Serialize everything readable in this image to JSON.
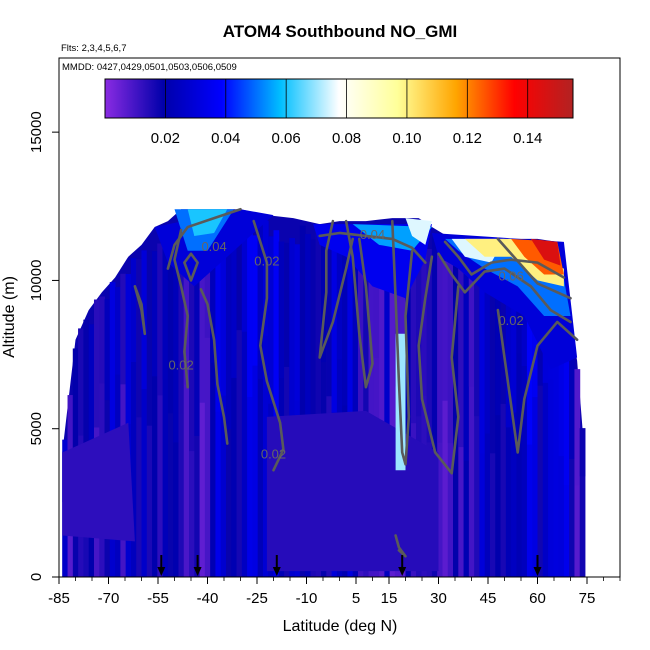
{
  "chart_data": {
    "type": "heatmap",
    "title": "ATOM4 Southbound NO_GMI",
    "flights_label": "Flts: 2,3,4,5,6,7",
    "dates_label": "MMDD: 0427,0429,0501,0503,0506,0509",
    "xlabel": "Latitude (deg N)",
    "ylabel": "Altitude (m)",
    "xlim": [
      -85,
      85
    ],
    "ylim": [
      0,
      17500
    ],
    "x_ticks": [
      -85,
      -70,
      -55,
      -40,
      -25,
      -10,
      5,
      15,
      30,
      45,
      60,
      75
    ],
    "y_ticks": [
      0,
      5000,
      10000,
      15000
    ],
    "colorbar": {
      "min": 0.0,
      "max": 0.155,
      "ticks": [
        0.02,
        0.04,
        0.06,
        0.08,
        0.1,
        0.12,
        0.14
      ],
      "tick_labels": [
        "0.02",
        "0.04",
        "0.06",
        "0.08",
        "0.10",
        "0.12",
        "0.14"
      ],
      "colors": [
        "#8a2be2",
        "#0000aa",
        "#0000ff",
        "#00bfff",
        "#ffffff",
        "#ffff99",
        "#ffa500",
        "#ff0000",
        "#b22222"
      ]
    },
    "profile_markers_lat": [
      -54,
      -43,
      -19,
      19,
      60
    ],
    "contour_levels": [
      0.02,
      0.04,
      0.06
    ],
    "contour_labels": [
      {
        "text": "0.04",
        "lat": -38,
        "alt": 11000
      },
      {
        "text": "0.02",
        "lat": -22,
        "alt": 10500
      },
      {
        "text": "0.04",
        "lat": 10,
        "alt": 11400
      },
      {
        "text": "0.06",
        "lat": 52,
        "alt": 10000
      },
      {
        "text": "0.02",
        "lat": 52,
        "alt": 8500
      },
      {
        "text": "0.02",
        "lat": -48,
        "alt": 7000
      },
      {
        "text": "0.02",
        "lat": -20,
        "alt": 4000
      }
    ],
    "ceiling_by_lat": [
      [
        -84,
        4200
      ],
      [
        -80,
        8000
      ],
      [
        -76,
        9000
      ],
      [
        -72,
        9600
      ],
      [
        -68,
        10100
      ],
      [
        -64,
        10800
      ],
      [
        -60,
        11200
      ],
      [
        -56,
        11800
      ],
      [
        -52,
        12000
      ],
      [
        -48,
        12400
      ],
      [
        -40,
        12400
      ],
      [
        -30,
        12400
      ],
      [
        -22,
        12200
      ],
      [
        -14,
        12100
      ],
      [
        -6,
        11900
      ],
      [
        0,
        12000
      ],
      [
        8,
        12000
      ],
      [
        16,
        12100
      ],
      [
        24,
        12100
      ],
      [
        28,
        11800
      ],
      [
        34,
        11400
      ],
      [
        44,
        11400
      ],
      [
        52,
        11400
      ],
      [
        60,
        11400
      ],
      [
        66,
        11300
      ],
      [
        68,
        9500
      ],
      [
        72,
        7300
      ],
      [
        74,
        4500
      ]
    ],
    "layers": [
      {
        "level": 0.03,
        "poly": [
          [
            -56,
            11800
          ],
          [
            -30,
            12400
          ],
          [
            -20,
            12200
          ],
          [
            -32,
            11000
          ],
          [
            -44,
            9800
          ],
          [
            -52,
            10600
          ]
        ]
      },
      {
        "level": 0.05,
        "poly": [
          [
            -50,
            12400
          ],
          [
            -32,
            12400
          ],
          [
            -40,
            11000
          ],
          [
            -46,
            11000
          ]
        ]
      },
      {
        "level": 0.06,
        "poly": [
          [
            -46,
            12400
          ],
          [
            -34,
            12400
          ],
          [
            -38,
            11600
          ],
          [
            -44,
            11500
          ]
        ]
      },
      {
        "level": 0.035,
        "poly": [
          [
            -8,
            11900
          ],
          [
            28,
            11900
          ],
          [
            26,
            10700
          ],
          [
            20,
            9400
          ],
          [
            10,
            9800
          ],
          [
            2,
            10800
          ],
          [
            -6,
            11200
          ]
        ]
      },
      {
        "level": 0.055,
        "poly": [
          [
            4,
            11900
          ],
          [
            28,
            11800
          ],
          [
            22,
            11000
          ],
          [
            12,
            11200
          ]
        ]
      },
      {
        "level": 0.075,
        "poly": [
          [
            20,
            12100
          ],
          [
            28,
            12000
          ],
          [
            26,
            11200
          ],
          [
            22,
            11500
          ]
        ]
      },
      {
        "level": 0.03,
        "poly": [
          [
            28,
            11600
          ],
          [
            68,
            11300
          ],
          [
            72,
            7400
          ],
          [
            64,
            7000
          ],
          [
            56,
            8800
          ],
          [
            44,
            9600
          ],
          [
            36,
            10400
          ],
          [
            30,
            10800
          ]
        ]
      },
      {
        "level": 0.05,
        "poly": [
          [
            32,
            11400
          ],
          [
            66,
            11300
          ],
          [
            70,
            8800
          ],
          [
            62,
            8800
          ],
          [
            54,
            9800
          ],
          [
            44,
            10400
          ],
          [
            36,
            11000
          ]
        ]
      },
      {
        "level": 0.075,
        "poly": [
          [
            34,
            11400
          ],
          [
            50,
            11400
          ],
          [
            46,
            10600
          ],
          [
            38,
            10800
          ]
        ]
      },
      {
        "level": 0.1,
        "poly": [
          [
            38,
            11400
          ],
          [
            52,
            11400
          ],
          [
            60,
            10800
          ],
          [
            68,
            10400
          ],
          [
            68,
            9800
          ],
          [
            60,
            10000
          ],
          [
            52,
            10800
          ],
          [
            44,
            10800
          ]
        ]
      },
      {
        "level": 0.125,
        "poly": [
          [
            52,
            11400
          ],
          [
            66,
            11300
          ],
          [
            68,
            10200
          ],
          [
            62,
            10200
          ],
          [
            56,
            10800
          ]
        ]
      },
      {
        "level": 0.145,
        "poly": [
          [
            58,
            11400
          ],
          [
            66,
            11300
          ],
          [
            67,
            10500
          ],
          [
            62,
            10700
          ]
        ]
      },
      {
        "level": 0.013,
        "poly": [
          [
            -84,
            4200
          ],
          [
            -64,
            5200
          ],
          [
            -62,
            1200
          ],
          [
            -84,
            1400
          ]
        ]
      },
      {
        "level": 0.014,
        "poly": [
          [
            -22,
            5400
          ],
          [
            8,
            5600
          ],
          [
            30,
            4200
          ],
          [
            30,
            200
          ],
          [
            -22,
            200
          ]
        ]
      },
      {
        "level": 0.07,
        "poly": [
          [
            17,
            8200
          ],
          [
            20,
            8200
          ],
          [
            20,
            3600
          ],
          [
            17,
            3600
          ]
        ]
      }
    ],
    "contours": [
      {
        "level": 0.02,
        "path": [
          [
            -62,
            9800
          ],
          [
            -60,
            9000
          ],
          [
            -59,
            8200
          ],
          [
            -60,
            9200
          ],
          [
            -62,
            9800
          ]
        ]
      },
      {
        "level": 0.02,
        "path": [
          [
            -48,
            11700
          ],
          [
            -50,
            10700
          ],
          [
            -48,
            9800
          ],
          [
            -46,
            8800
          ],
          [
            -47,
            7600
          ],
          [
            -46,
            6400
          ]
        ]
      },
      {
        "level": 0.02,
        "path": [
          [
            -42,
            9700
          ],
          [
            -40,
            9200
          ],
          [
            -38,
            8000
          ],
          [
            -37,
            6500
          ],
          [
            -35,
            5400
          ],
          [
            -34,
            4500
          ]
        ]
      },
      {
        "level": 0.02,
        "path": [
          [
            -26,
            12000
          ],
          [
            -22,
            10600
          ],
          [
            -22,
            9400
          ],
          [
            -24,
            7800
          ],
          [
            -22,
            6600
          ],
          [
            -18,
            5200
          ],
          [
            -17,
            4300
          ],
          [
            -20,
            3600
          ]
        ]
      },
      {
        "level": 0.02,
        "path": [
          [
            -2,
            12000
          ],
          [
            -4,
            11000
          ],
          [
            -4,
            9600
          ],
          [
            -6,
            7400
          ],
          [
            -2,
            8600
          ],
          [
            2,
            10400
          ],
          [
            4,
            11400
          ]
        ]
      },
      {
        "level": 0.02,
        "path": [
          [
            2,
            12000
          ],
          [
            4,
            10800
          ],
          [
            6,
            8200
          ],
          [
            8,
            6400
          ],
          [
            10,
            7200
          ],
          [
            8,
            9800
          ],
          [
            6,
            11400
          ]
        ]
      },
      {
        "level": 0.02,
        "path": [
          [
            16,
            12000
          ],
          [
            17,
            9400
          ],
          [
            18,
            6600
          ],
          [
            19,
            4200
          ],
          [
            20,
            3800
          ],
          [
            21,
            5400
          ],
          [
            20,
            8800
          ],
          [
            22,
            11000
          ]
        ]
      },
      {
        "level": 0.02,
        "path": [
          [
            28,
            10800
          ],
          [
            26,
            9400
          ],
          [
            24,
            7800
          ],
          [
            25,
            6000
          ],
          [
            29,
            4200
          ],
          [
            34,
            3500
          ],
          [
            36,
            5400
          ],
          [
            34,
            7400
          ],
          [
            36,
            9800
          ]
        ]
      },
      {
        "level": 0.02,
        "path": [
          [
            48,
            9000
          ],
          [
            50,
            7400
          ],
          [
            52,
            5800
          ],
          [
            54,
            4200
          ],
          [
            56,
            6000
          ],
          [
            60,
            7800
          ],
          [
            66,
            8600
          ],
          [
            72,
            8000
          ]
        ]
      },
      {
        "level": 0.02,
        "path": [
          [
            17,
            1400
          ],
          [
            18,
            1000
          ],
          [
            20,
            700
          ],
          [
            18,
            900
          ]
        ]
      },
      {
        "level": 0.04,
        "path": [
          [
            -52,
            10400
          ],
          [
            -50,
            11200
          ],
          [
            -46,
            11800
          ],
          [
            -38,
            12100
          ],
          [
            -30,
            12400
          ]
        ]
      },
      {
        "level": 0.04,
        "path": [
          [
            -47,
            10600
          ],
          [
            -45,
            10000
          ],
          [
            -43,
            10600
          ],
          [
            -45,
            10900
          ],
          [
            -47,
            10600
          ]
        ]
      },
      {
        "level": 0.04,
        "path": [
          [
            -6,
            11500
          ],
          [
            0,
            11600
          ],
          [
            8,
            11500
          ],
          [
            16,
            11400
          ],
          [
            22,
            11100
          ],
          [
            26,
            10600
          ]
        ]
      },
      {
        "level": 0.04,
        "path": [
          [
            30,
            10900
          ],
          [
            34,
            10200
          ],
          [
            38,
            9600
          ],
          [
            44,
            10300
          ],
          [
            50,
            10400
          ],
          [
            58,
            9800
          ],
          [
            64,
            9000
          ],
          [
            70,
            8600
          ]
        ]
      },
      {
        "level": 0.06,
        "path": [
          [
            32,
            11300
          ],
          [
            36,
            10800
          ],
          [
            40,
            10200
          ],
          [
            46,
            10600
          ],
          [
            52,
            10700
          ],
          [
            60,
            10600
          ],
          [
            68,
            10100
          ]
        ]
      },
      {
        "level": 0.06,
        "path": [
          [
            48,
            11400
          ],
          [
            52,
            10900
          ],
          [
            56,
            10400
          ],
          [
            60,
            9900
          ],
          [
            66,
            9600
          ],
          [
            70,
            9400
          ]
        ]
      }
    ]
  }
}
